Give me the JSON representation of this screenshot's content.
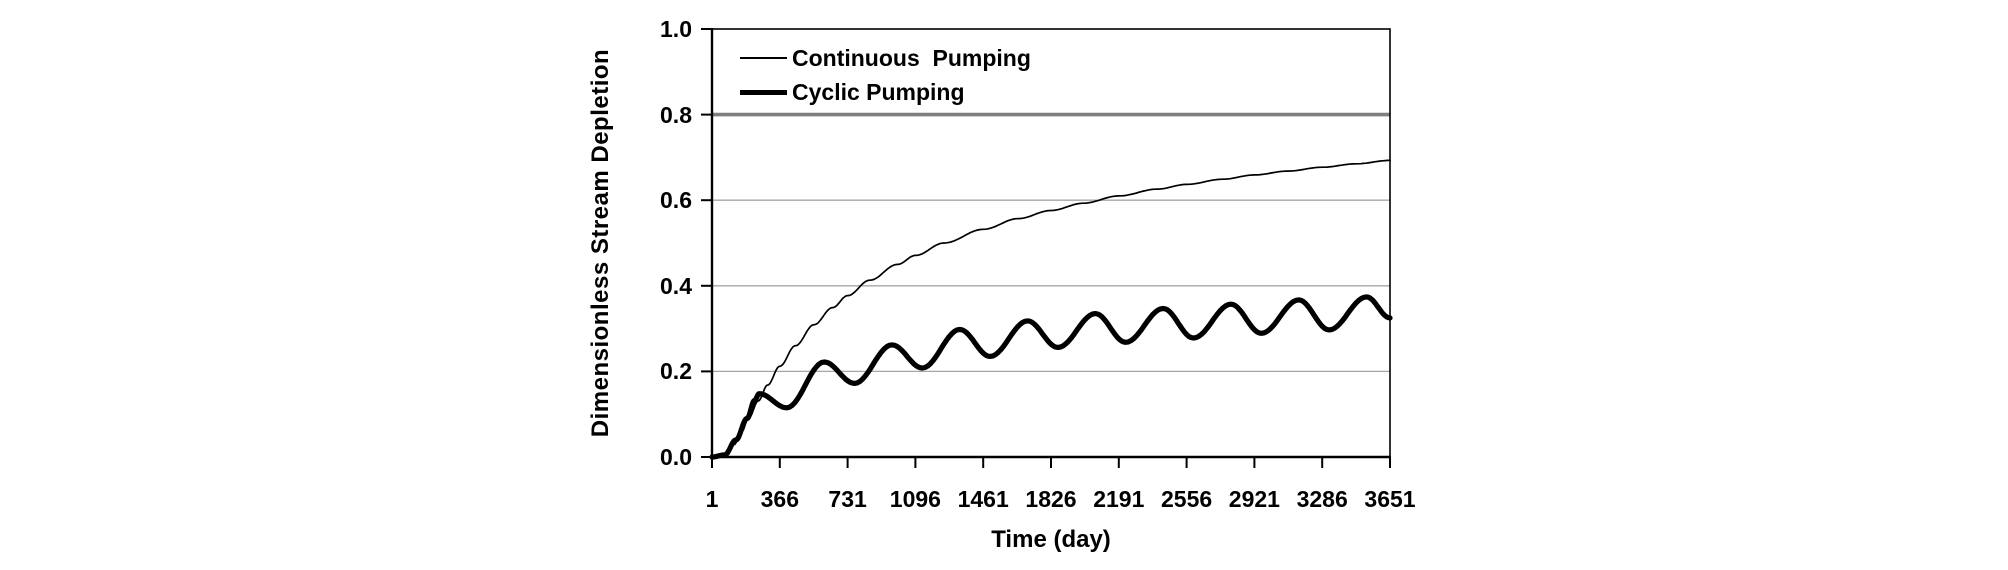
{
  "colors": {
    "background": "#ffffff",
    "text": "#000000",
    "axis_line": "#000000",
    "gridline": "#a6a6a6",
    "gridline_emphasis": "#7f7f7f",
    "series_color": "#000000"
  },
  "legend": {
    "items": [
      {
        "label": "Continuous  Pumping",
        "line_style": "thin"
      },
      {
        "label": "Cyclic Pumping",
        "line_style": "thick"
      }
    ]
  },
  "chart_data": {
    "type": "line",
    "title": "",
    "xlabel": "Time (day)",
    "ylabel": "Dimensionless Stream Depletion",
    "xlim": [
      1,
      3651
    ],
    "ylim": [
      0.0,
      1.0
    ],
    "x_ticks": [
      "1",
      "366",
      "731",
      "1096",
      "1461",
      "1826",
      "2191",
      "2556",
      "2921",
      "3286",
      "3651"
    ],
    "y_ticks": [
      "0.0",
      "0.2",
      "0.4",
      "0.6",
      "0.8",
      "1.0"
    ],
    "gridlines": [
      {
        "value": 0.2,
        "emphasis": false
      },
      {
        "value": 0.4,
        "emphasis": false
      },
      {
        "value": 0.6,
        "emphasis": false
      },
      {
        "value": 0.8,
        "emphasis": true
      }
    ],
    "legend_position": "top-left inside plot",
    "grid": "horizontal only",
    "series": [
      {
        "name": "Continuous Pumping",
        "style": "thin",
        "stroke_width": 1.7,
        "points": [
          [
            1,
            0.0
          ],
          [
            40,
            0.001
          ],
          [
            80,
            0.008
          ],
          [
            120,
            0.029
          ],
          [
            160,
            0.059
          ],
          [
            200,
            0.092
          ],
          [
            250,
            0.131
          ],
          [
            300,
            0.168
          ],
          [
            366,
            0.212
          ],
          [
            450,
            0.26
          ],
          [
            550,
            0.309
          ],
          [
            650,
            0.349
          ],
          [
            731,
            0.377
          ],
          [
            850,
            0.413
          ],
          [
            1000,
            0.45
          ],
          [
            1096,
            0.471
          ],
          [
            1250,
            0.5
          ],
          [
            1461,
            0.532
          ],
          [
            1650,
            0.557
          ],
          [
            1826,
            0.576
          ],
          [
            2000,
            0.593
          ],
          [
            2191,
            0.61
          ],
          [
            2400,
            0.626
          ],
          [
            2556,
            0.637
          ],
          [
            2750,
            0.649
          ],
          [
            2921,
            0.659
          ],
          [
            3100,
            0.668
          ],
          [
            3286,
            0.677
          ],
          [
            3468,
            0.685
          ],
          [
            3651,
            0.693
          ]
        ]
      },
      {
        "name": "Cyclic Pumping",
        "style": "thick",
        "stroke_width": 5.2,
        "points": [
          [
            1,
            0.0
          ],
          [
            70,
            0.005
          ],
          [
            130,
            0.04
          ],
          [
            190,
            0.09
          ],
          [
            230,
            0.132
          ],
          [
            255,
            0.148
          ],
          [
            403,
            0.115
          ],
          [
            605,
            0.222
          ],
          [
            768,
            0.172
          ],
          [
            970,
            0.262
          ],
          [
            1133,
            0.208
          ],
          [
            1335,
            0.298
          ],
          [
            1498,
            0.235
          ],
          [
            1700,
            0.318
          ],
          [
            1863,
            0.256
          ],
          [
            2065,
            0.335
          ],
          [
            2228,
            0.268
          ],
          [
            2430,
            0.347
          ],
          [
            2593,
            0.278
          ],
          [
            2795,
            0.357
          ],
          [
            2958,
            0.289
          ],
          [
            3160,
            0.367
          ],
          [
            3323,
            0.297
          ],
          [
            3525,
            0.374
          ],
          [
            3651,
            0.325
          ]
        ]
      }
    ]
  }
}
